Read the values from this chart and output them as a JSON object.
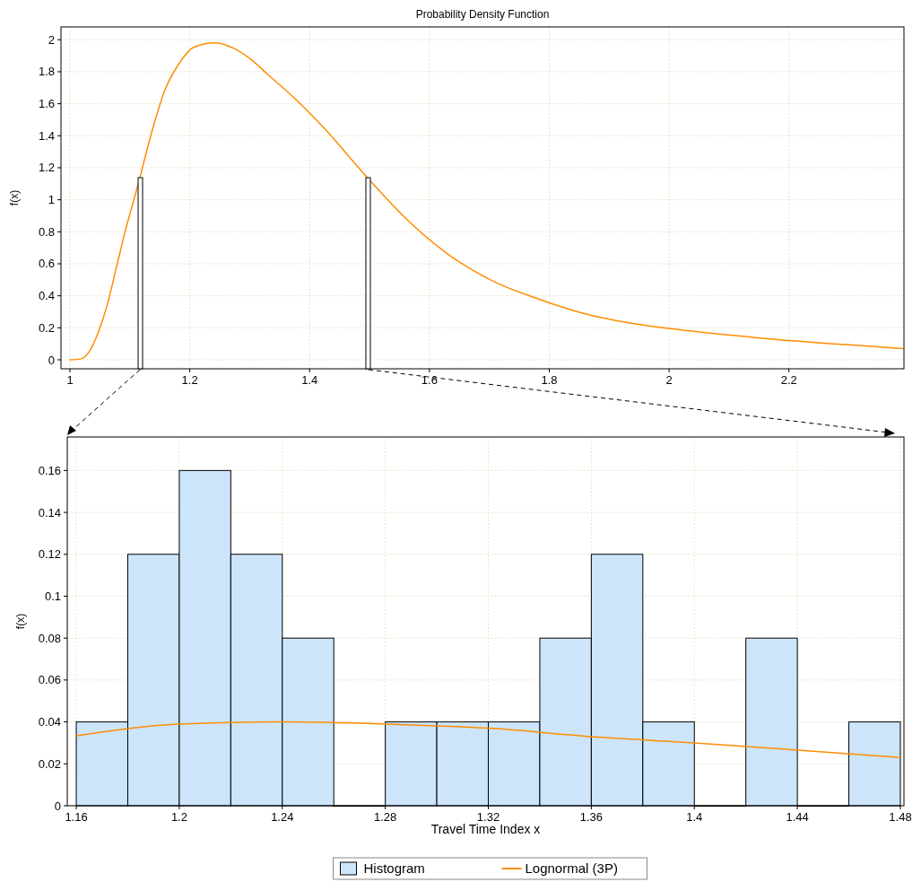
{
  "chart_data": [
    {
      "type": "line",
      "title": "Probability Density Function",
      "ylabel": "f(x)",
      "xlim": [
        0.985,
        2.392
      ],
      "ylim": [
        -0.056,
        2.08
      ],
      "xticks": [
        1,
        1.2,
        1.4,
        1.6,
        1.8,
        2,
        2.2
      ],
      "yticks": [
        0,
        0.2,
        0.4,
        0.6,
        0.8,
        1,
        1.2,
        1.4,
        1.6,
        1.8,
        2
      ],
      "grid": true,
      "legend": false,
      "series": [
        {
          "color": "#ff8c00",
          "x": [
            1.0,
            1.017,
            1.032,
            1.047,
            1.062,
            1.077,
            1.092,
            1.114,
            1.137,
            1.159,
            1.182,
            1.205,
            1.242,
            1.271,
            1.301,
            1.331,
            1.376,
            1.421,
            1.496,
            1.556,
            1.631,
            1.707,
            1.782,
            1.857,
            1.934,
            2.0,
            2.114,
            2.2,
            2.295,
            2.39
          ],
          "values": [
            0,
            0.005,
            0.05,
            0.17,
            0.34,
            0.57,
            0.8,
            1.1,
            1.43,
            1.69,
            1.85,
            1.95,
            1.98,
            1.95,
            1.88,
            1.78,
            1.63,
            1.46,
            1.14,
            0.9,
            0.66,
            0.49,
            0.38,
            0.29,
            0.23,
            0.196,
            0.15,
            0.12,
            0.095,
            0.07
          ]
        }
      ]
    },
    {
      "type": "histogram",
      "xlabel": "Travel Time Index x",
      "ylabel": "f(x)",
      "xlim": [
        1.1565,
        1.4814
      ],
      "ylim": [
        0,
        0.176
      ],
      "xticks": [
        1.16,
        1.2,
        1.24,
        1.28,
        1.32,
        1.36,
        1.4,
        1.44,
        1.48
      ],
      "yticks": [
        0,
        0.02,
        0.04,
        0.06,
        0.08,
        0.1,
        0.12,
        0.14,
        0.16
      ],
      "grid": true,
      "legend": "bottom",
      "bins": [
        1.16,
        1.18,
        1.2,
        1.22,
        1.24,
        1.26,
        1.28,
        1.3,
        1.32,
        1.34,
        1.36,
        1.38,
        1.4,
        1.42,
        1.44,
        1.46,
        1.48
      ],
      "series": [
        {
          "name": "Histogram",
          "color": "#cce5fb",
          "values": [
            0.04,
            0.12,
            0.16,
            0.12,
            0.08,
            0,
            0.04,
            0.04,
            0.04,
            0.08,
            0.12,
            0.04,
            0,
            0.08,
            0,
            0.04
          ]
        },
        {
          "type": "line",
          "name": "Lognormal (3P)",
          "color": "#ff8c00",
          "x": [
            1.16,
            1.2,
            1.24,
            1.28,
            1.32,
            1.36,
            1.4,
            1.44,
            1.48
          ],
          "values": [
            0.0334,
            0.039,
            0.04,
            0.039,
            0.037,
            0.033,
            0.03,
            0.0265,
            0.023
          ]
        }
      ]
    }
  ]
}
